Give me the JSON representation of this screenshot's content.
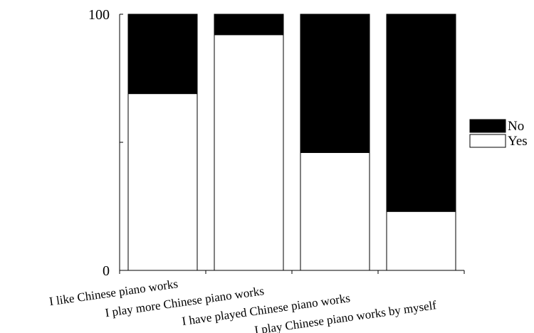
{
  "chart_data": {
    "type": "bar",
    "stacked": true,
    "orientation": "vertical",
    "categories": [
      "I like Chinese piano works",
      "I play more Chinese piano works",
      "I have played Chinese piano works",
      "I play Chinese piano works by myself"
    ],
    "series": [
      {
        "name": "Yes",
        "values": [
          69,
          92,
          46,
          23
        ],
        "color": "#ffffff"
      },
      {
        "name": "No",
        "values": [
          31,
          8,
          54,
          77
        ],
        "color": "#000000"
      }
    ],
    "ylim": [
      0,
      100
    ],
    "yticks": [
      0,
      100
    ],
    "title": "",
    "xlabel": "",
    "ylabel": "",
    "grid": false,
    "legend": {
      "placement": "right",
      "entries": [
        {
          "name": "No",
          "color": "#000000"
        },
        {
          "name": "Yes",
          "color": "#ffffff"
        }
      ]
    }
  }
}
